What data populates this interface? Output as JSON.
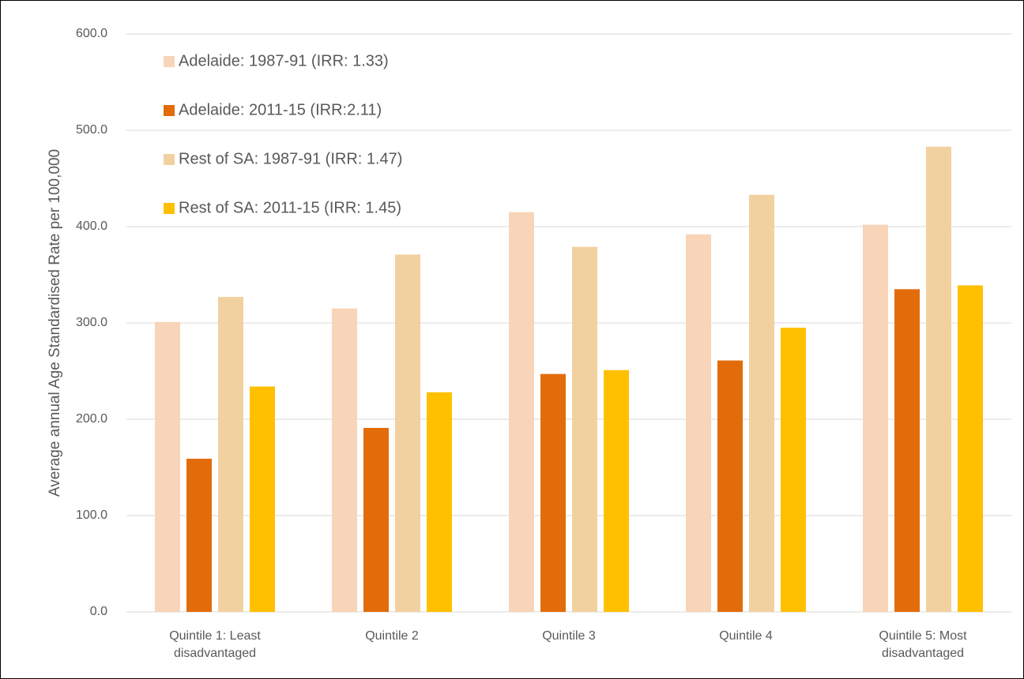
{
  "chart_data": {
    "type": "bar",
    "y_label": "Average annual Age Standardised Rate per 100,000",
    "categories": [
      "Quintile 1: Least disadvantaged",
      "Quintile 2",
      "Quintile 3",
      "Quintile 4",
      "Quintile 5: Most disadvantaged"
    ],
    "series": [
      {
        "name": "Adelaide: 1987-91 (IRR: 1.33)",
        "color": "#f8d5b8",
        "values": [
          301,
          315,
          415,
          392,
          402
        ]
      },
      {
        "name": "Adelaide: 2011-15 (IRR:2.11)",
        "color": "#e36c0a",
        "values": [
          159,
          191,
          247,
          261,
          335
        ]
      },
      {
        "name": "Rest of SA: 1987-91 (IRR: 1.47)",
        "color": "#f2d1a0",
        "values": [
          327,
          371,
          379,
          433,
          483
        ]
      },
      {
        "name": "Rest of SA: 2011-15 (IRR: 1.45)",
        "color": "#ffc000",
        "values": [
          234,
          228,
          251,
          295,
          339
        ]
      }
    ],
    "ylim": [
      0,
      600
    ],
    "yticks": [
      {
        "value": 0,
        "label": "0.0"
      },
      {
        "value": 100,
        "label": "100.0"
      },
      {
        "value": 200,
        "label": "200.0"
      },
      {
        "value": 300,
        "label": "300.0"
      },
      {
        "value": 400,
        "label": "400.0"
      },
      {
        "value": 500,
        "label": "500.0"
      },
      {
        "value": 600,
        "label": "600.0"
      }
    ],
    "grid": true,
    "legend": "upper left"
  }
}
